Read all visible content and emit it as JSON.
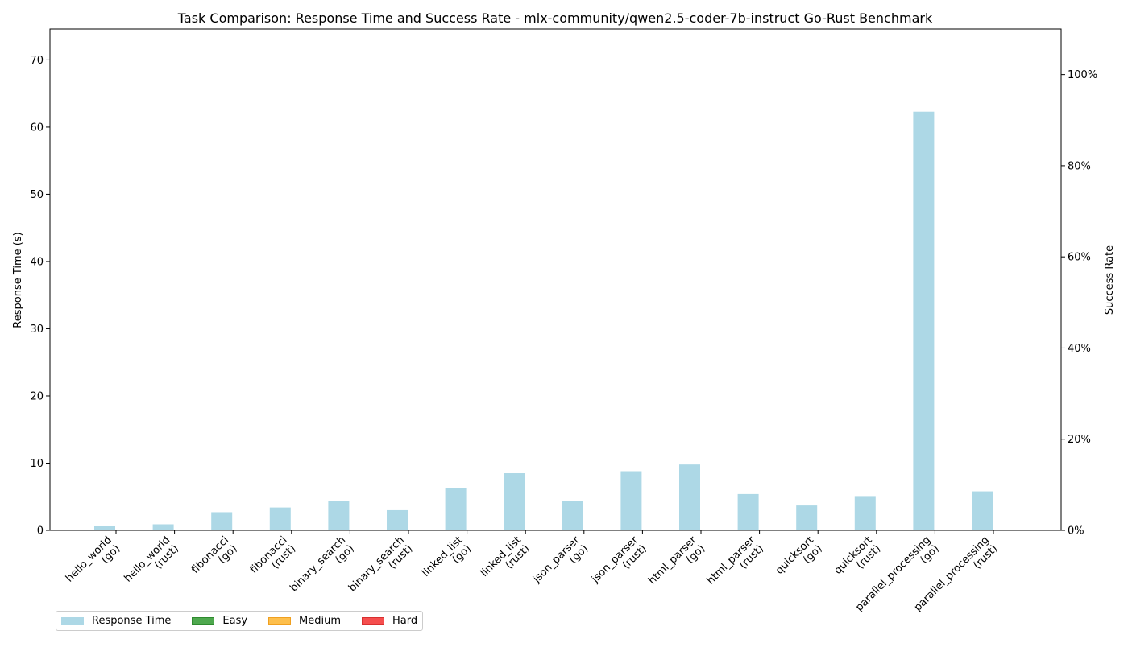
{
  "chart_data": {
    "type": "bar",
    "title": "Task Comparison: Response Time and Success Rate - mlx-community/qwen2.5-coder-7b-instruct Go-Rust Benchmark",
    "ylabel": "Response Time (s)",
    "y2label": "Success Rate",
    "ylim": [
      0,
      74.6
    ],
    "y2lim": [
      0,
      1.1
    ],
    "yticks": [
      "0",
      "10",
      "20",
      "30",
      "40",
      "50",
      "60",
      "70"
    ],
    "y2ticks": [
      "0%",
      "20%",
      "40%",
      "60%",
      "80%",
      "100%"
    ],
    "categories": [
      "hello_world\n(go)",
      "hello_world\n(rust)",
      "fibonacci\n(go)",
      "fibonacci\n(rust)",
      "binary_search\n(go)",
      "binary_search\n(rust)",
      "linked_list\n(go)",
      "linked_list\n(rust)",
      "json_parser\n(go)",
      "json_parser\n(rust)",
      "html_parser\n(go)",
      "html_parser\n(rust)",
      "quicksort\n(go)",
      "quicksort\n(rust)",
      "parallel_processing\n(go)",
      "parallel_processing\n(rust)"
    ],
    "series": [
      {
        "name": "Response Time",
        "color": "#add8e6",
        "values": [
          0.6,
          0.9,
          2.7,
          3.4,
          4.4,
          3.0,
          6.3,
          8.5,
          4.4,
          8.8,
          9.8,
          5.4,
          3.7,
          5.1,
          62.3,
          5.8
        ]
      },
      {
        "name": "Success Rate",
        "values": [
          0,
          0,
          0,
          0,
          0,
          0,
          0,
          0,
          0,
          0,
          0,
          0,
          0,
          0,
          0,
          0
        ]
      }
    ],
    "legend": {
      "placement": "bottom-left",
      "entries": [
        {
          "label": "Response Time",
          "color": "#add8e6",
          "border": "#add8e6"
        },
        {
          "label": "Easy",
          "color": "#4ea84e",
          "border": "#2f8a2f"
        },
        {
          "label": "Medium",
          "color": "#fdbf4d",
          "border": "#f0a020"
        },
        {
          "label": "Hard",
          "color": "#f54e4e",
          "border": "#d83030"
        }
      ]
    },
    "grid": false
  }
}
